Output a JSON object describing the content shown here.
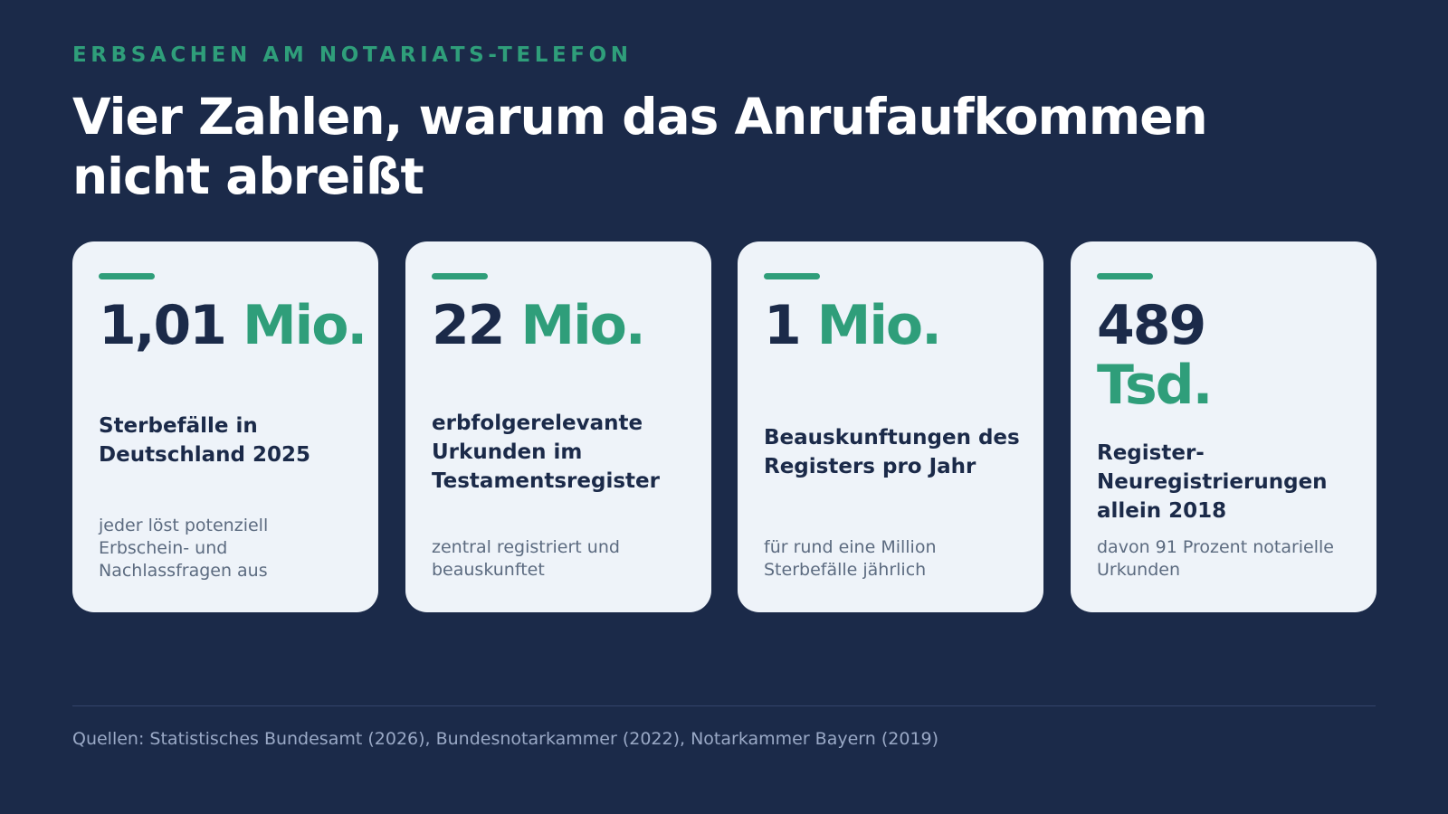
{
  "header": {
    "eyebrow": "ERBSACHEN AM NOTARIATS-TELEFON",
    "title": "Vier Zahlen, warum das Anrufaufkommen nicht abreißt"
  },
  "cards": [
    {
      "number": "1,01",
      "unit": "Mio.",
      "label": "Sterbefälle in Deutschland 2025",
      "note": "jeder löst potenziell Erbschein- und Nachlassfragen aus"
    },
    {
      "number": "22",
      "unit": "Mio.",
      "label": "erbfolgerelevante Urkunden im Testamentsregister",
      "note": "zentral registriert und beauskunftet"
    },
    {
      "number": "1",
      "unit": "Mio.",
      "label": "Beauskunftungen des Registers pro Jahr",
      "note": "für rund eine Million Sterbefälle jährlich"
    },
    {
      "number": "489",
      "unit": "Tsd.",
      "label": "Register-Neuregistrierungen allein 2018",
      "note": "davon 91 Prozent notarielle Urkunden"
    }
  ],
  "footer": {
    "sources": "Quellen: Statistisches Bundesamt (2026), Bundesnotarkammer (2022), Notarkammer Bayern (2019)"
  },
  "colors": {
    "background": "#1b2a49",
    "accent": "#2f9e7a",
    "card": "#eef3f9",
    "text_dark": "#1b2a49",
    "text_muted": "#5c6b80"
  }
}
